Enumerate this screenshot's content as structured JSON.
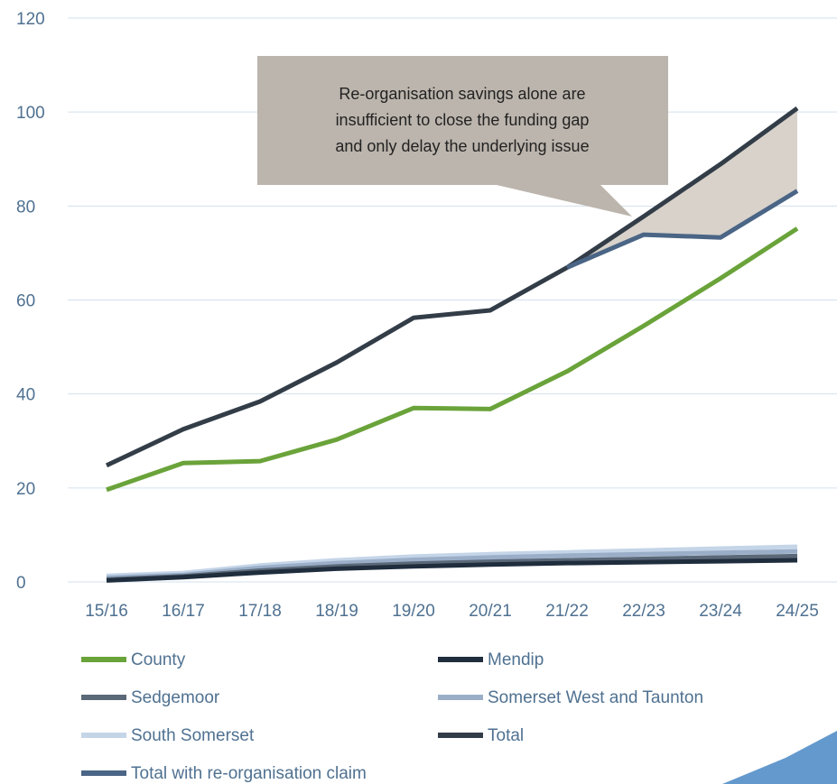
{
  "chart_data": {
    "type": "line",
    "categories": [
      "15/16",
      "16/17",
      "17/18",
      "18/19",
      "19/20",
      "20/21",
      "21/22",
      "22/23",
      "23/24",
      "24/25"
    ],
    "series": [
      {
        "name": "County",
        "color": "#6aa33a",
        "values": [
          19.6,
          25.3,
          25.7,
          30.3,
          37,
          36.8,
          44.8,
          54.5,
          64.6,
          75.2
        ]
      },
      {
        "name": "Mendip",
        "color": "#1f2d3d",
        "values": [
          0.3,
          1,
          2,
          2.8,
          3.3,
          3.7,
          4,
          4.2,
          4.4,
          4.6
        ]
      },
      {
        "name": "Sedgemoor",
        "color": "#5a6878",
        "values": [
          0.5,
          1.2,
          2.4,
          3.3,
          3.9,
          4.3,
          4.6,
          4.9,
          5.2,
          5.5
        ]
      },
      {
        "name": "Somerset West and Taunton",
        "color": "#9aaec8",
        "values": [
          0.9,
          1.5,
          3,
          4,
          4.7,
          5.2,
          5.6,
          5.9,
          6.2,
          6.5
        ]
      },
      {
        "name": "South Somerset",
        "color": "#c5d5e8",
        "values": [
          1.3,
          1.9,
          3.5,
          4.6,
          5.4,
          5.9,
          6.3,
          6.7,
          7.1,
          7.5
        ]
      },
      {
        "name": "Total",
        "color": "#333d48",
        "values": [
          24.8,
          32.5,
          38.4,
          46.7,
          56.2,
          57.8,
          66.9,
          77.8,
          88.9,
          100.8
        ]
      },
      {
        "name": "Total with re-organisation claim",
        "color": "#4a6585",
        "values": [
          null,
          null,
          null,
          null,
          null,
          null,
          66.9,
          73.9,
          73.3,
          83.2
        ]
      }
    ],
    "ylim": [
      0,
      120
    ],
    "yticks": [
      0,
      20,
      40,
      60,
      80,
      100,
      120
    ],
    "grid": true,
    "annotation": [
      "Re-organisation savings alone are",
      "insufficient to close the funding gap",
      "and only delay the underlying issue"
    ]
  }
}
